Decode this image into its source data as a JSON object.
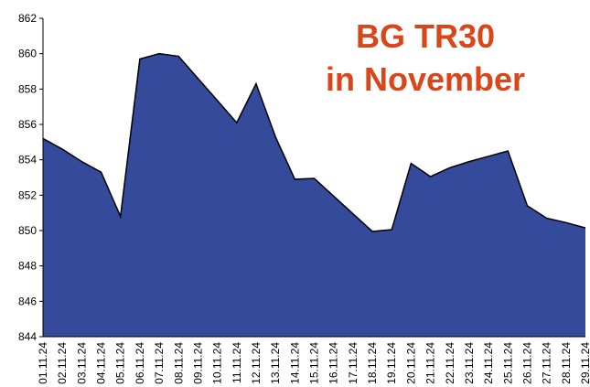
{
  "chart_data": {
    "type": "area",
    "title": [
      "BG TR30",
      "in November"
    ],
    "categories": [
      "01.11.24",
      "02.11.24",
      "03.11.24",
      "04.11.24",
      "05.11.24",
      "06.11.24",
      "07.11.24",
      "08.11.24",
      "09.11.24",
      "10.11.24",
      "11.11.24",
      "12.11.24",
      "13.11.24",
      "14.11.24",
      "15.11.24",
      "16.11.24",
      "17.11.24",
      "18.11.24",
      "19.11.24",
      "20.11.24",
      "21.11.24",
      "22.11.24",
      "23.11.24",
      "24.11.24",
      "25.11.24",
      "26.11.24",
      "27.11.24",
      "28.11.24",
      "29.11.24"
    ],
    "values": [
      855.2,
      854.6,
      853.9,
      853.3,
      850.8,
      859.7,
      860.0,
      859.85,
      858.6,
      857.35,
      856.1,
      858.3,
      855.3,
      852.9,
      852.95,
      851.95,
      850.95,
      849.95,
      850.05,
      853.8,
      853.05,
      853.55,
      853.9,
      854.2,
      854.5,
      851.4,
      850.7,
      850.45,
      850.15
    ],
    "color": "#354a9a",
    "ylim": [
      844,
      862
    ],
    "yticks": [
      844,
      846,
      848,
      850,
      852,
      854,
      856,
      858,
      860,
      862
    ],
    "grid": false
  }
}
